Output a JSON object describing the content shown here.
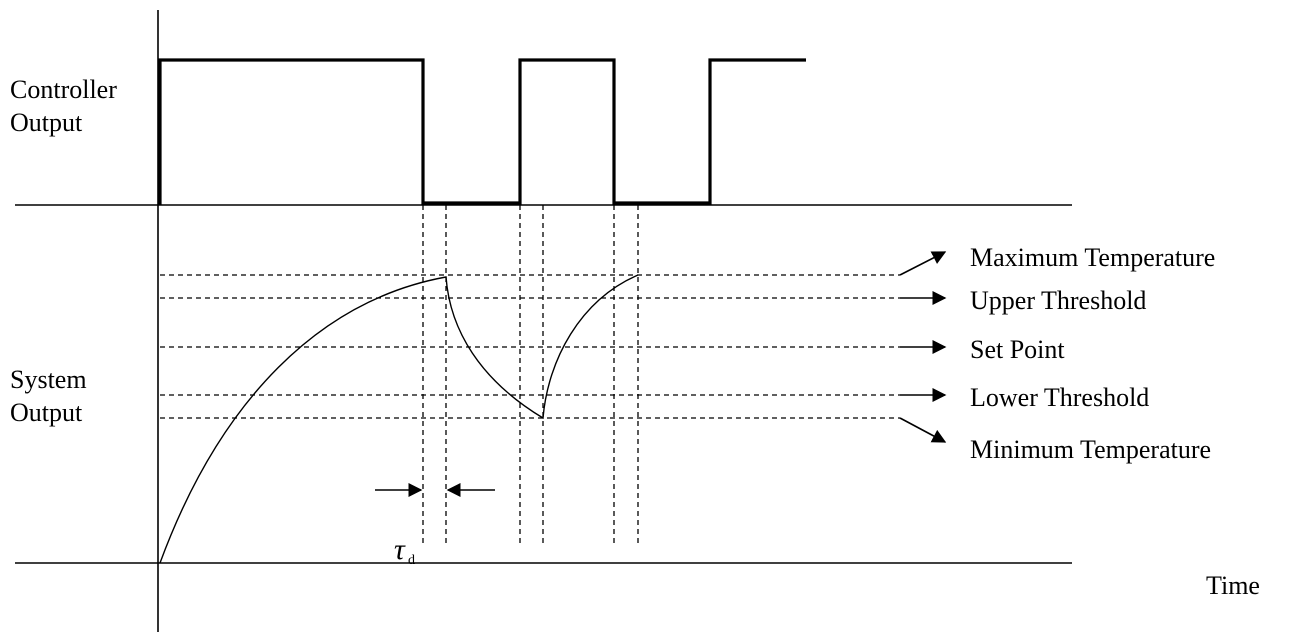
{
  "labels": {
    "controller_output_line1": "Controller",
    "controller_output_line2": "Output",
    "system_output_line1": "System",
    "system_output_line2": "Output",
    "time": "Time",
    "tau_symbol": "τ",
    "tau_subscript": "d"
  },
  "levels": [
    {
      "key": "max",
      "label": "Maximum Temperature"
    },
    {
      "key": "upper",
      "label": "Upper Threshold"
    },
    {
      "key": "set",
      "label": "Set Point"
    },
    {
      "key": "lower",
      "label": "Lower Threshold"
    },
    {
      "key": "min",
      "label": "Minimum Temperature"
    }
  ]
}
